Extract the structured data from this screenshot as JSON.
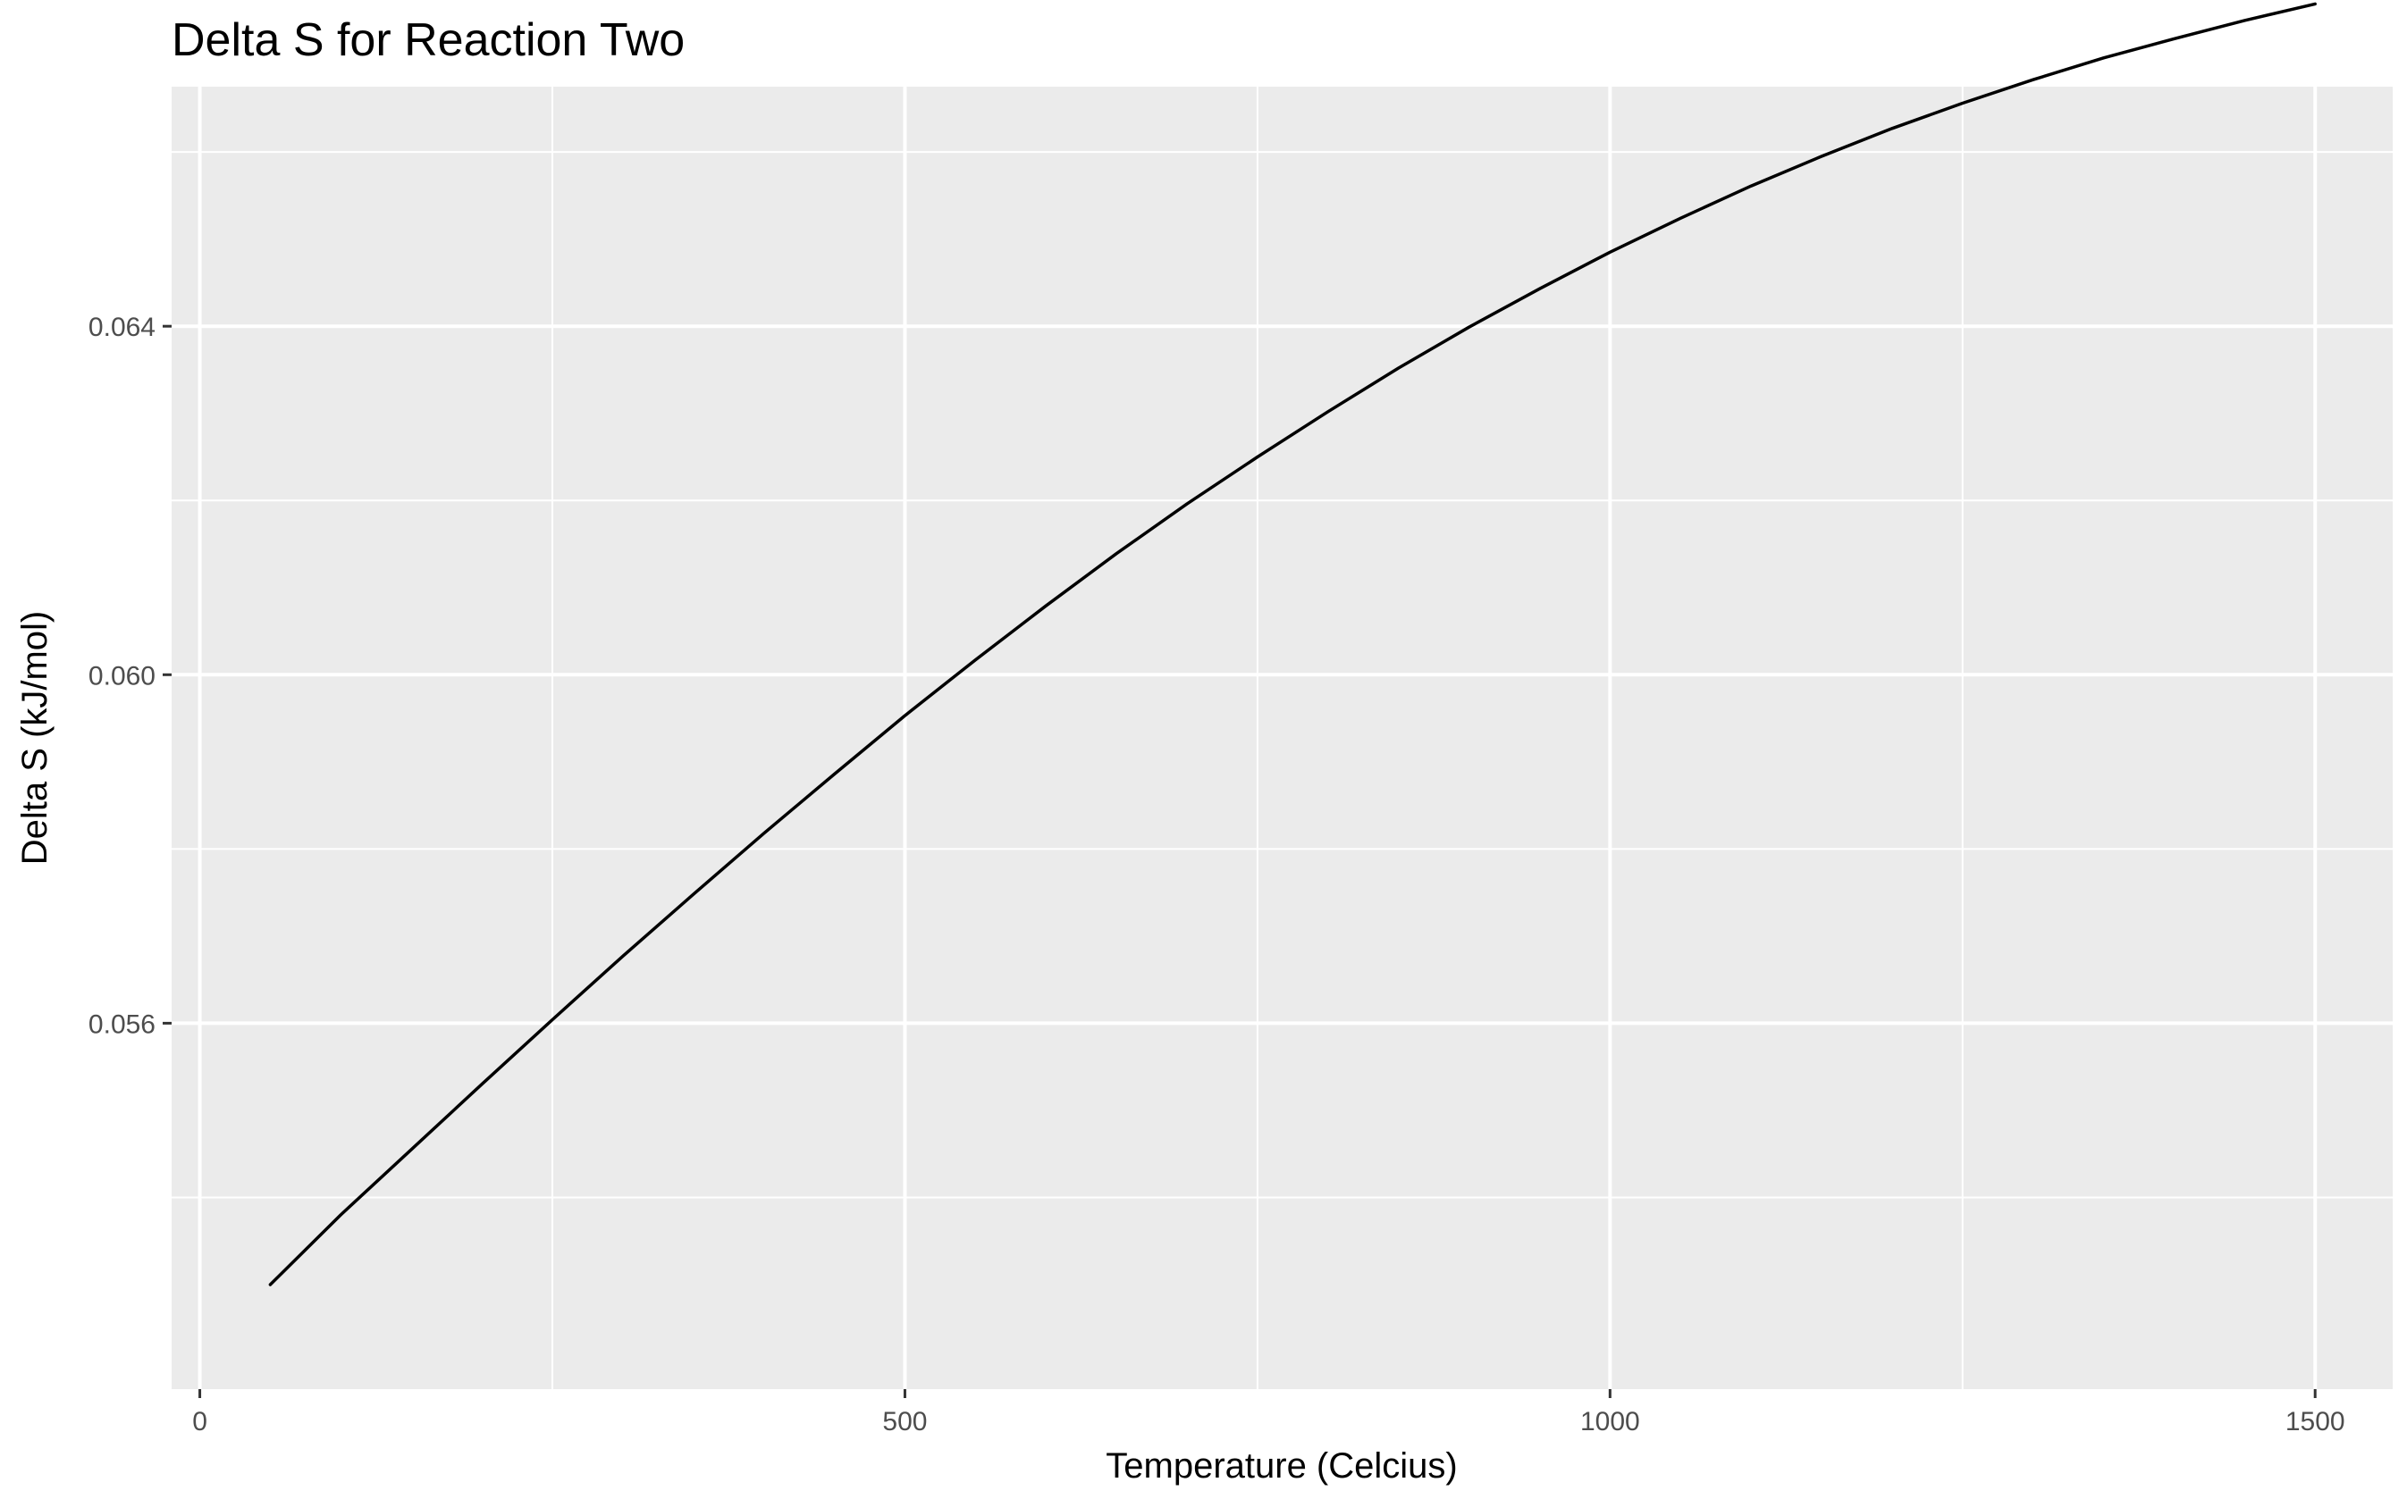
{
  "chart_data": {
    "type": "line",
    "title": "Delta S for Reaction Two",
    "xlabel": "Temperature (Celcius)",
    "ylabel": "Delta S (kJ/mol)",
    "xlim": [
      -20,
      1555
    ],
    "ylim": [
      0.0518,
      0.06675
    ],
    "x_ticks": [
      0,
      500,
      1000,
      1500
    ],
    "x_tick_labels": [
      "0",
      "500",
      "1000",
      "1500"
    ],
    "x_minor_ticks": [
      250,
      750,
      1250
    ],
    "y_ticks": [
      0.056,
      0.06,
      0.064
    ],
    "y_tick_labels": [
      "0.056",
      "0.060",
      "0.064"
    ],
    "y_minor_ticks": [
      0.054,
      0.058,
      0.062,
      0.066
    ],
    "grid": true,
    "legend": "none",
    "background": "#ebebeb",
    "grid_color": "#ffffff",
    "line_color": "#000000",
    "series": [
      {
        "x": [
          50,
          100,
          150,
          200,
          250,
          300,
          350,
          400,
          450,
          500,
          550,
          600,
          650,
          700,
          750,
          800,
          850,
          900,
          950,
          1000,
          1050,
          1100,
          1150,
          1200,
          1250,
          1300,
          1350,
          1400,
          1450,
          1500
        ],
        "values": [
          0.053,
          0.0538,
          0.05455,
          0.0553,
          0.05604,
          0.05677,
          0.05748,
          0.05818,
          0.05886,
          0.05953,
          0.06017,
          0.06079,
          0.06139,
          0.06196,
          0.0625,
          0.06302,
          0.06352,
          0.06399,
          0.06443,
          0.06485,
          0.06524,
          0.06561,
          0.06595,
          0.06627,
          0.06656,
          0.06683,
          0.06708,
          0.0673,
          0.06751,
          0.0677
        ]
      }
    ]
  }
}
